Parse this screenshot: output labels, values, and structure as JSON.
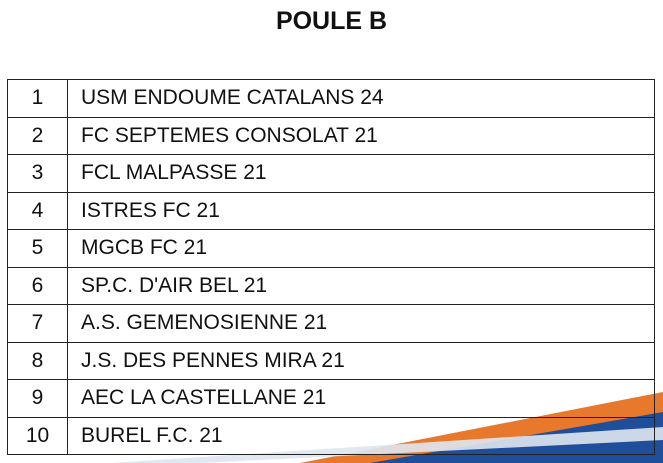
{
  "title": "POULE B",
  "rows": [
    {
      "rank": "1",
      "team": "USM ENDOUME CATALANS 24"
    },
    {
      "rank": "2",
      "team": "FC SEPTEMES CONSOLAT 21"
    },
    {
      "rank": "3",
      "team": "FCL MALPASSE 21"
    },
    {
      "rank": "4",
      "team": "ISTRES FC 21"
    },
    {
      "rank": "5",
      "team": "MGCB FC 21"
    },
    {
      "rank": "6",
      "team": "SP.C. D'AIR BEL 21"
    },
    {
      "rank": "7",
      "team": "A.S. GEMENOSIENNE 21"
    },
    {
      "rank": "8",
      "team": "J.S. DES PENNES MIRA 21"
    },
    {
      "rank": "9",
      "team": "AEC LA CASTELLANE 21"
    },
    {
      "rank": "10",
      "team": "BUREL F.C. 21"
    }
  ],
  "colors": {
    "accent_orange": "#e8782c",
    "accent_blue": "#1f4f9a"
  }
}
